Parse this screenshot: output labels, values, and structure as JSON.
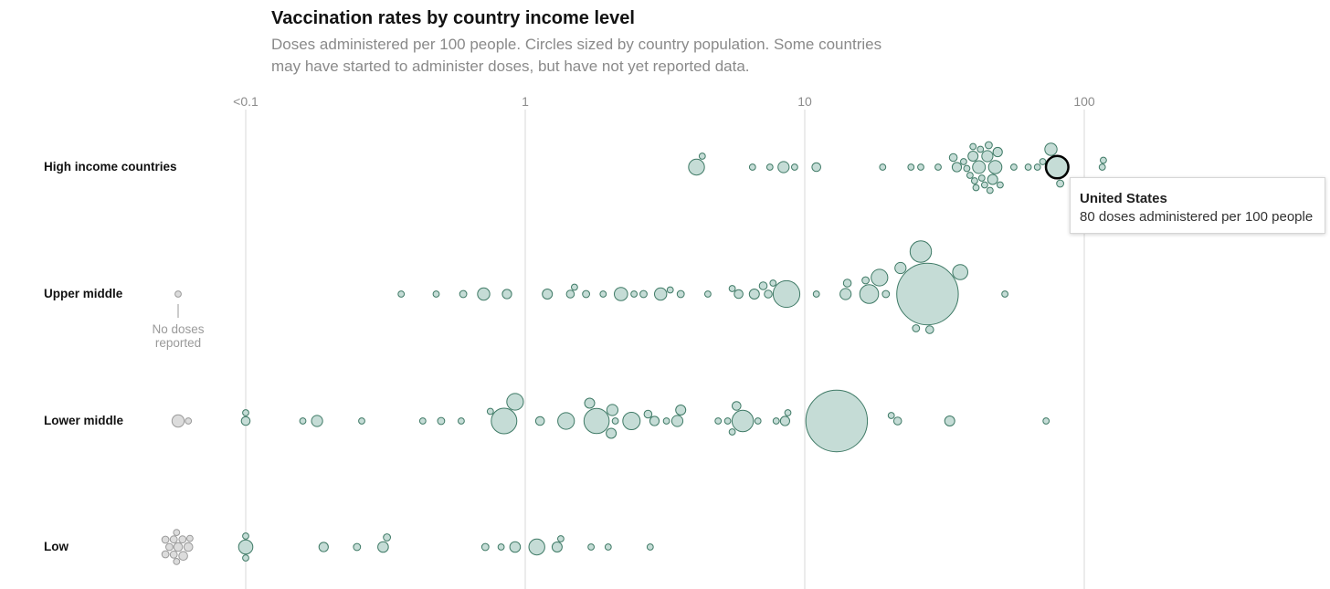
{
  "header": {
    "title": "Vaccination rates by country income level",
    "subtitle": "Doses administered per 100 people. Circles sized by country population. Some countries may have started to administer doses, but have not yet reported data."
  },
  "tooltip": {
    "country": "United States",
    "text": "80 doses administered per 100 people"
  },
  "colors": {
    "reported_fill": "#c5dcd6",
    "reported_stroke": "#3f7a66",
    "unreported_fill": "#dcdcdc",
    "unreported_stroke": "#9a9a9a",
    "highlight_stroke": "#000000",
    "gridline": "#d9d9d9"
  },
  "chart_data": {
    "type": "scatter",
    "title": "Vaccination rates by country income level",
    "xscale": "log",
    "xlim": [
      0.1,
      100
    ],
    "xticks": [
      {
        "value": 0.1,
        "label": "<0.1"
      },
      {
        "value": 1,
        "label": "1"
      },
      {
        "value": 10,
        "label": "10"
      },
      {
        "value": 100,
        "label": "100"
      }
    ],
    "no_doses_label": "No doses reported",
    "groups": [
      {
        "name": "High income countries",
        "unreported": [],
        "points": [
          {
            "x": 4.1,
            "size": 10
          },
          {
            "x": 4.3,
            "size": 1.5
          },
          {
            "x": 6.5,
            "size": 1.5
          },
          {
            "x": 7.5,
            "size": 1.5
          },
          {
            "x": 8.4,
            "size": 5
          },
          {
            "x": 9.2,
            "size": 1.5
          },
          {
            "x": 11,
            "size": 3
          },
          {
            "x": 19,
            "size": 1.5
          },
          {
            "x": 24,
            "size": 1.5
          },
          {
            "x": 26,
            "size": 1.5
          },
          {
            "x": 30,
            "size": 1.5
          },
          {
            "x": 34,
            "size": 2.5
          },
          {
            "x": 35,
            "size": 3.5
          },
          {
            "x": 37,
            "size": 1.5
          },
          {
            "x": 38,
            "size": 1.5
          },
          {
            "x": 39,
            "size": 1.5
          },
          {
            "x": 40,
            "size": 4
          },
          {
            "x": 40.5,
            "size": 1.5
          },
          {
            "x": 40,
            "size": 1.5
          },
          {
            "x": 41,
            "size": 1.5
          },
          {
            "x": 42,
            "size": 6.5
          },
          {
            "x": 42.5,
            "size": 1.5
          },
          {
            "x": 43,
            "size": 1.5
          },
          {
            "x": 44,
            "size": 1.5
          },
          {
            "x": 45,
            "size": 5
          },
          {
            "x": 45.5,
            "size": 2
          },
          {
            "x": 46,
            "size": 1.5
          },
          {
            "x": 47,
            "size": 4
          },
          {
            "x": 48,
            "size": 7
          },
          {
            "x": 49,
            "size": 3.5
          },
          {
            "x": 50,
            "size": 1.5
          },
          {
            "x": 56,
            "size": 1.5
          },
          {
            "x": 63,
            "size": 1.5
          },
          {
            "x": 68,
            "size": 1.5
          },
          {
            "x": 71,
            "size": 1.5
          },
          {
            "x": 76,
            "size": 6
          },
          {
            "x": 80,
            "size": 20,
            "country": "United States"
          },
          {
            "x": 82,
            "size": 2
          },
          {
            "x": 116,
            "size": 1.5
          },
          {
            "x": 117,
            "size": 1.5
          }
        ]
      },
      {
        "name": "Upper middle",
        "unreported": [
          {
            "size": 1.5
          }
        ],
        "points": [
          {
            "x": 0.36,
            "size": 1.5
          },
          {
            "x": 0.48,
            "size": 1.5
          },
          {
            "x": 0.6,
            "size": 2
          },
          {
            "x": 0.71,
            "size": 6
          },
          {
            "x": 0.86,
            "size": 3.5
          },
          {
            "x": 1.2,
            "size": 4
          },
          {
            "x": 1.45,
            "size": 2.5
          },
          {
            "x": 1.5,
            "size": 1.5
          },
          {
            "x": 1.65,
            "size": 2
          },
          {
            "x": 1.9,
            "size": 1.5
          },
          {
            "x": 2.2,
            "size": 7
          },
          {
            "x": 2.45,
            "size": 1.5
          },
          {
            "x": 2.65,
            "size": 2
          },
          {
            "x": 3.05,
            "size": 6
          },
          {
            "x": 3.3,
            "size": 1.5
          },
          {
            "x": 3.6,
            "size": 2
          },
          {
            "x": 4.5,
            "size": 1.5
          },
          {
            "x": 5.5,
            "size": 1.5
          },
          {
            "x": 5.8,
            "size": 3
          },
          {
            "x": 6.6,
            "size": 4
          },
          {
            "x": 7.4,
            "size": 2.5
          },
          {
            "x": 7.7,
            "size": 1.5
          },
          {
            "x": 8.6,
            "size": 28
          },
          {
            "x": 7.1,
            "size": 2.5
          },
          {
            "x": 11,
            "size": 1.5
          },
          {
            "x": 14,
            "size": 5
          },
          {
            "x": 14.2,
            "size": 2.5
          },
          {
            "x": 16.5,
            "size": 2
          },
          {
            "x": 17,
            "size": 14
          },
          {
            "x": 18.5,
            "size": 11
          },
          {
            "x": 19.5,
            "size": 2
          },
          {
            "x": 22,
            "size": 5
          },
          {
            "x": 25,
            "size": 2
          },
          {
            "x": 26,
            "size": 18
          },
          {
            "x": 28,
            "size": 2.5
          },
          {
            "x": 27.5,
            "size": 150
          },
          {
            "x": 36,
            "size": 9
          },
          {
            "x": 52,
            "size": 1.5
          }
        ]
      },
      {
        "name": "Lower middle",
        "unreported": [
          {
            "size": 6
          },
          {
            "size": 1.5
          }
        ],
        "points": [
          {
            "x": 0.1,
            "size": 1.5
          },
          {
            "x": 0.1,
            "size": 3
          },
          {
            "x": 0.16,
            "size": 1.5
          },
          {
            "x": 0.18,
            "size": 5
          },
          {
            "x": 0.26,
            "size": 1.5
          },
          {
            "x": 0.43,
            "size": 1.5
          },
          {
            "x": 0.5,
            "size": 2
          },
          {
            "x": 0.59,
            "size": 1.5
          },
          {
            "x": 0.75,
            "size": 1.5
          },
          {
            "x": 0.84,
            "size": 26
          },
          {
            "x": 0.92,
            "size": 11
          },
          {
            "x": 1.13,
            "size": 3
          },
          {
            "x": 1.4,
            "size": 11
          },
          {
            "x": 1.7,
            "size": 4
          },
          {
            "x": 1.8,
            "size": 25
          },
          {
            "x": 2.03,
            "size": 4
          },
          {
            "x": 2.05,
            "size": 5
          },
          {
            "x": 2.1,
            "size": 1.5
          },
          {
            "x": 2.4,
            "size": 12
          },
          {
            "x": 2.75,
            "size": 2.5
          },
          {
            "x": 2.9,
            "size": 3.5
          },
          {
            "x": 3.2,
            "size": 1.5
          },
          {
            "x": 3.5,
            "size": 5
          },
          {
            "x": 3.6,
            "size": 4
          },
          {
            "x": 4.9,
            "size": 1.5
          },
          {
            "x": 5.3,
            "size": 1.5
          },
          {
            "x": 5.5,
            "size": 1.5
          },
          {
            "x": 5.7,
            "size": 3
          },
          {
            "x": 6.0,
            "size": 18
          },
          {
            "x": 6.8,
            "size": 1.5
          },
          {
            "x": 7.9,
            "size": 1.5
          },
          {
            "x": 8.5,
            "size": 3.5
          },
          {
            "x": 8.7,
            "size": 1.5
          },
          {
            "x": 13,
            "size": 150
          },
          {
            "x": 20.4,
            "size": 1.5
          },
          {
            "x": 21.5,
            "size": 2.5
          },
          {
            "x": 33,
            "size": 4
          },
          {
            "x": 73,
            "size": 1.5
          }
        ]
      },
      {
        "name": "Low",
        "unreported": [
          {
            "size": 3
          },
          {
            "size": 3
          },
          {
            "size": 2
          },
          {
            "size": 3
          },
          {
            "size": 2
          },
          {
            "size": 2
          },
          {
            "size": 2
          },
          {
            "size": 2
          },
          {
            "size": 1.5
          },
          {
            "size": 1.5
          },
          {
            "size": 2
          },
          {
            "size": 1.5
          }
        ],
        "points": [
          {
            "x": 0.1,
            "size": 1.5
          },
          {
            "x": 0.1,
            "size": 1.5
          },
          {
            "x": 0.1,
            "size": 8
          },
          {
            "x": 0.19,
            "size": 3.5
          },
          {
            "x": 0.25,
            "size": 2
          },
          {
            "x": 0.31,
            "size": 4.5
          },
          {
            "x": 0.32,
            "size": 2
          },
          {
            "x": 0.72,
            "size": 2
          },
          {
            "x": 0.82,
            "size": 1.5
          },
          {
            "x": 0.92,
            "size": 4.5
          },
          {
            "x": 1.1,
            "size": 10
          },
          {
            "x": 1.3,
            "size": 4
          },
          {
            "x": 1.34,
            "size": 1.5
          },
          {
            "x": 1.72,
            "size": 1.5
          },
          {
            "x": 1.98,
            "size": 1.5
          },
          {
            "x": 2.8,
            "size": 1.5
          }
        ]
      }
    ]
  }
}
